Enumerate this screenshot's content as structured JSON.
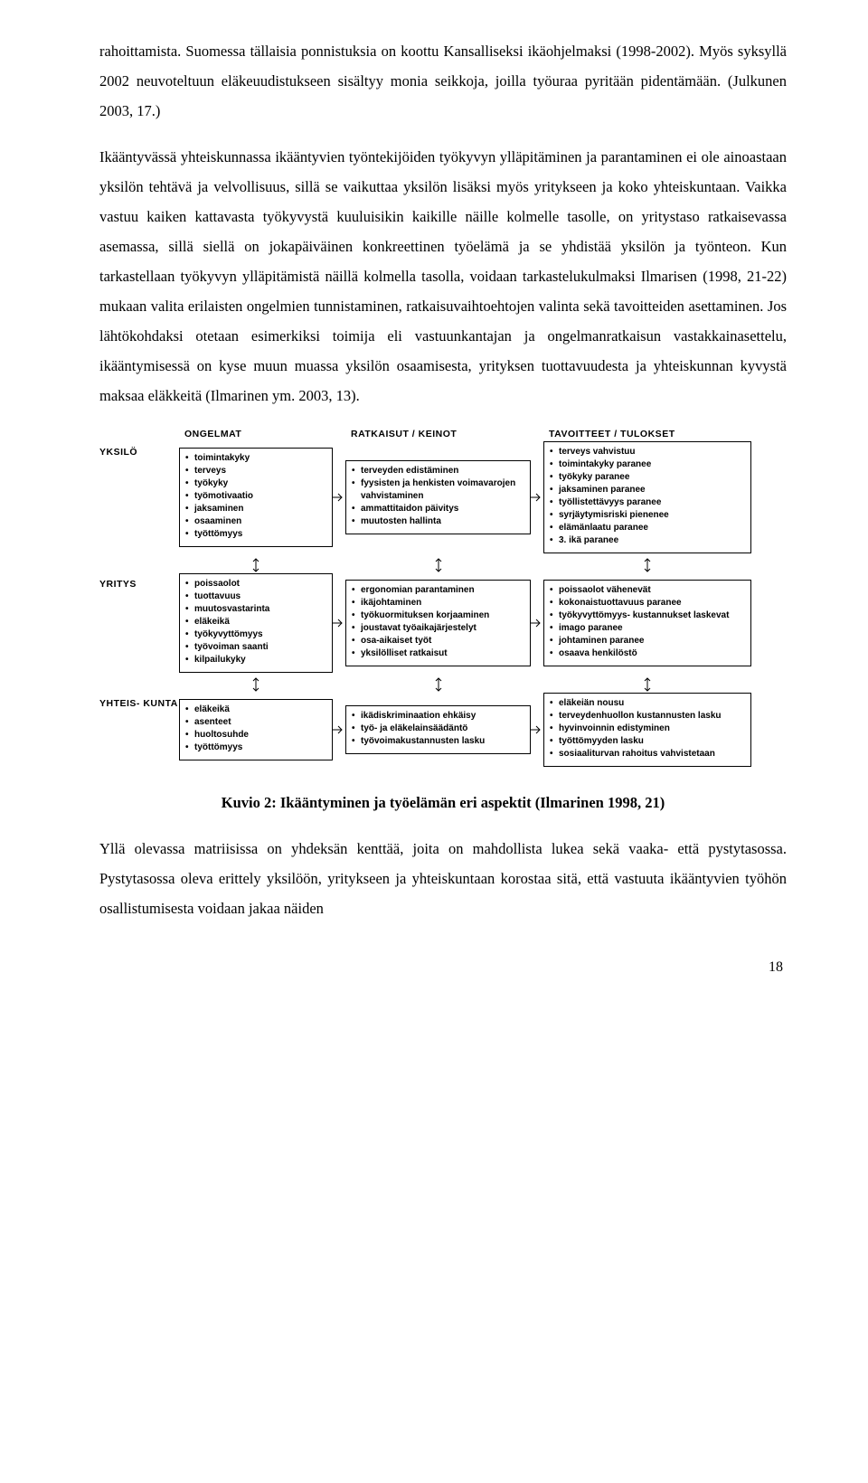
{
  "paragraphs": {
    "p1": "rahoittamista. Suomessa tällaisia ponnistuksia on koottu Kansalliseksi ikäohjelmaksi (1998-2002). Myös syksyllä 2002 neuvoteltuun eläkeuudistukseen sisältyy monia seikkoja, joilla työuraa pyritään pidentämään. (Julkunen 2003, 17.)",
    "p2": "Ikääntyvässä yhteiskunnassa ikääntyvien työntekijöiden työkyvyn ylläpitäminen ja parantaminen ei ole ainoastaan yksilön tehtävä ja velvollisuus, sillä se vaikuttaa yksilön lisäksi myös yritykseen ja koko yhteiskuntaan. Vaikka vastuu kaiken kattavasta työkyvystä kuuluisikin kaikille näille kolmelle tasolle, on yritystaso ratkaisevassa asemassa, sillä siellä on jokapäiväinen konkreettinen työelämä ja se yhdistää yksilön ja työnteon. Kun tarkastellaan työkyvyn ylläpitämistä näillä kolmella tasolla, voidaan tarkastelukulmaksi Ilmarisen (1998, 21-22) mukaan valita erilaisten ongelmien tunnistaminen, ratkaisuvaihtoehtojen valinta sekä tavoitteiden asettaminen. Jos lähtökohdaksi otetaan esimerkiksi toimija eli vastuunkantajan ja ongelmanratkaisun vastakkainasettelu, ikääntymisessä on kyse muun muassa yksilön osaamisesta, yrityksen tuottavuudesta ja yhteiskunnan kyvystä maksaa eläkkeitä (Ilmarinen ym. 2003, 13).",
    "p3": "Yllä olevassa matriisissa on yhdeksän kenttää, joita on mahdollista lukea sekä vaaka- että pystytasossa. Pystytasossa oleva erittely yksilöön, yritykseen ja yhteiskuntaan korostaa sitä, että vastuuta ikääntyvien työhön osallistumisesta voidaan jakaa näiden"
  },
  "headers": {
    "col1": "ONGELMAT",
    "col2": "RATKAISUT / KEINOT",
    "col3": "TAVOITTEET / TULOKSET"
  },
  "rows": {
    "yksilo": {
      "label": "YKSILÖ",
      "ongelmat": [
        "toimintakyky",
        "terveys",
        "työkyky",
        "työmotivaatio",
        "jaksaminen",
        "osaaminen",
        "työttömyys"
      ],
      "ratkaisut": [
        "terveyden edistäminen",
        "fyysisten ja henkisten voimavarojen vahvistaminen",
        "ammattitaidon päivitys",
        "muutosten hallinta"
      ],
      "tavoitteet": [
        "terveys vahvistuu",
        "toimintakyky paranee",
        "työkyky paranee",
        "jaksaminen paranee",
        "työllistettävyys paranee",
        "syrjäytymisriski pienenee",
        "elämänlaatu paranee",
        "3. ikä paranee"
      ]
    },
    "yritys": {
      "label": "YRITYS",
      "ongelmat": [
        "poissaolot",
        "tuottavuus",
        "muutosvastarinta",
        "eläkeikä",
        "työkyvyttömyys",
        "työvoiman saanti",
        "kilpailukyky"
      ],
      "ratkaisut": [
        "ergonomian parantaminen",
        "ikäjohtaminen",
        "työkuormituksen korjaaminen",
        "joustavat työaikajärjestelyt",
        "osa-aikaiset työt",
        "yksilölliset ratkaisut"
      ],
      "tavoitteet": [
        "poissaolot vähenevät",
        "kokonaistuottavuus paranee",
        "työkyvyttömyys- kustannukset laskevat",
        "imago paranee",
        "johtaminen paranee",
        "osaava henkilöstö"
      ]
    },
    "yhteiskunta": {
      "label": "YHTEIS- KUNTA",
      "ongelmat": [
        "eläkeikä",
        "asenteet",
        "huoltosuhde",
        "työttömyys"
      ],
      "ratkaisut": [
        "ikädiskriminaation ehkäisy",
        "työ- ja eläkelainsäädäntö",
        "työvoimakustannusten lasku"
      ],
      "tavoitteet": [
        "eläkeiän nousu",
        "terveydenhuollon kustannusten lasku",
        "hyvinvoinnin edistyminen",
        "työttömyyden lasku",
        "sosiaaliturvan rahoitus vahvistetaan"
      ]
    }
  },
  "caption": "Kuvio 2: Ikääntyminen ja työelämän eri aspektit (Ilmarinen 1998, 21)",
  "pagenum": "18"
}
